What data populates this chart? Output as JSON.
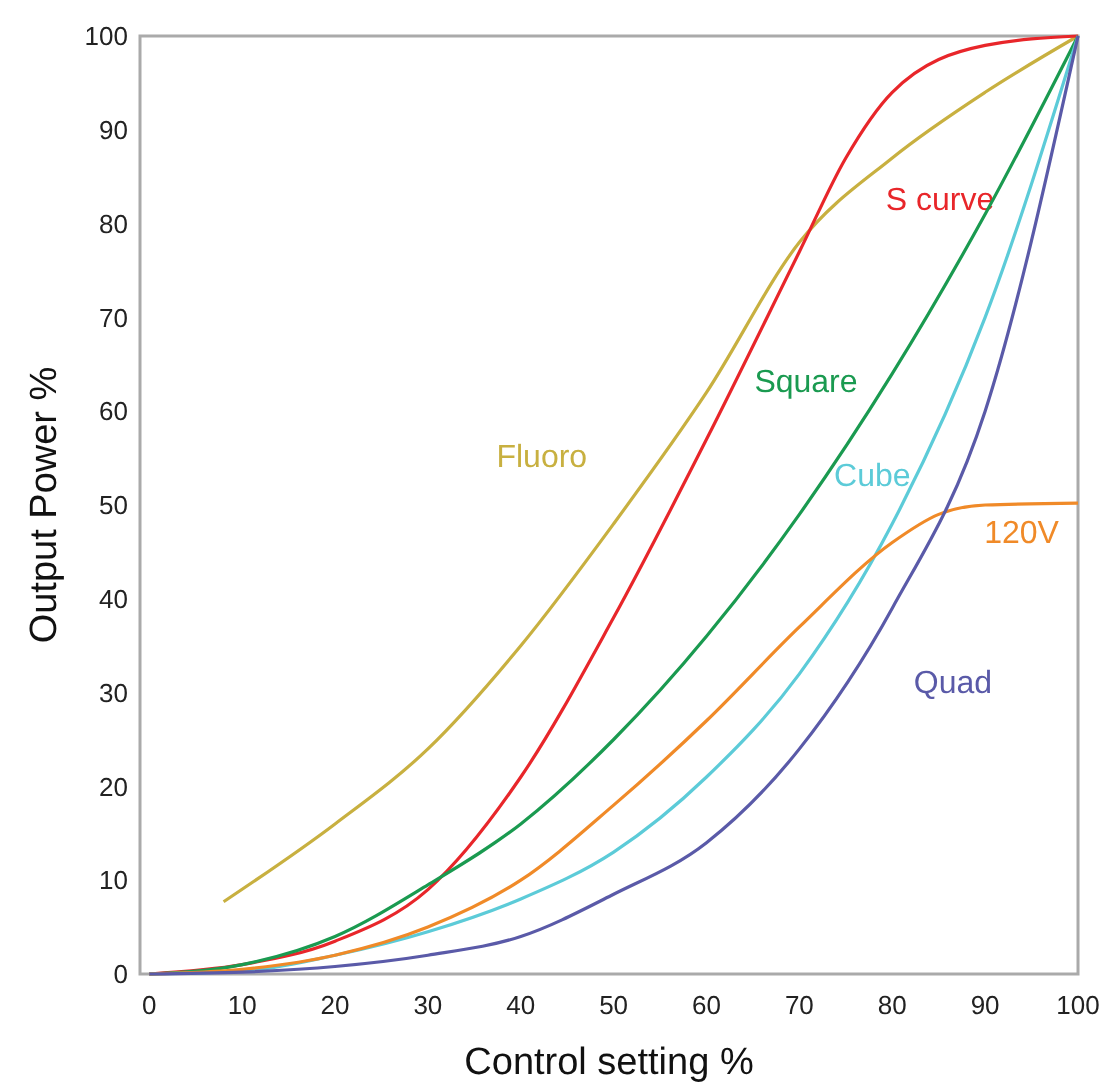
{
  "chart_data": {
    "type": "line",
    "xlabel": "Control setting %",
    "ylabel": "Output Power %",
    "xlim": [
      -1,
      100
    ],
    "ylim": [
      0,
      100
    ],
    "xticks": [
      0,
      10,
      20,
      30,
      40,
      50,
      60,
      70,
      80,
      90,
      100
    ],
    "yticks": [
      0,
      10,
      20,
      30,
      40,
      50,
      60,
      70,
      80,
      90,
      100
    ],
    "grid": false,
    "marker": "none",
    "series": [
      {
        "name": "Fluoro",
        "color": "#c8b040",
        "x": [
          8,
          20,
          30,
          40,
          50,
          60,
          70,
          80,
          90,
          100
        ],
        "values": [
          7.7,
          16,
          24,
          35,
          48,
          62,
          78,
          87,
          94,
          100
        ]
      },
      {
        "name": "S curve",
        "color": "#e8262a",
        "x": [
          0,
          10,
          20,
          30,
          40,
          50,
          60,
          70,
          75,
          80,
          90,
          100
        ],
        "values": [
          0,
          1,
          3.5,
          9,
          21,
          38,
          57,
          77,
          87,
          94,
          99,
          100
        ]
      },
      {
        "name": "Square",
        "color": "#1a9a50",
        "x": [
          0,
          10,
          20,
          30,
          40,
          50,
          60,
          70,
          80,
          90,
          100
        ],
        "values": [
          0,
          1,
          4,
          9.5,
          16,
          25,
          36,
          49,
          64,
          81,
          100
        ]
      },
      {
        "name": "Cube",
        "color": "#5ccbd8",
        "x": [
          0,
          10,
          20,
          30,
          40,
          50,
          60,
          70,
          80,
          90,
          100
        ],
        "values": [
          0,
          0.3,
          2,
          4.5,
          8,
          13,
          21,
          32,
          48,
          70,
          100
        ]
      },
      {
        "name": "120V",
        "color": "#f08a28",
        "x": [
          0,
          10,
          20,
          30,
          40,
          50,
          60,
          70,
          80,
          85,
          90,
          100
        ],
        "values": [
          0,
          0.5,
          2,
          5,
          10,
          18,
          27,
          37,
          46,
          49,
          50,
          50.2
        ]
      },
      {
        "name": "Quad",
        "color": "#5a5aa8",
        "x": [
          0,
          10,
          20,
          30,
          40,
          50,
          60,
          70,
          80,
          90,
          100
        ],
        "values": [
          0,
          0.2,
          0.8,
          2,
          4,
          8.5,
          14,
          24,
          39,
          60,
          100
        ]
      }
    ]
  }
}
